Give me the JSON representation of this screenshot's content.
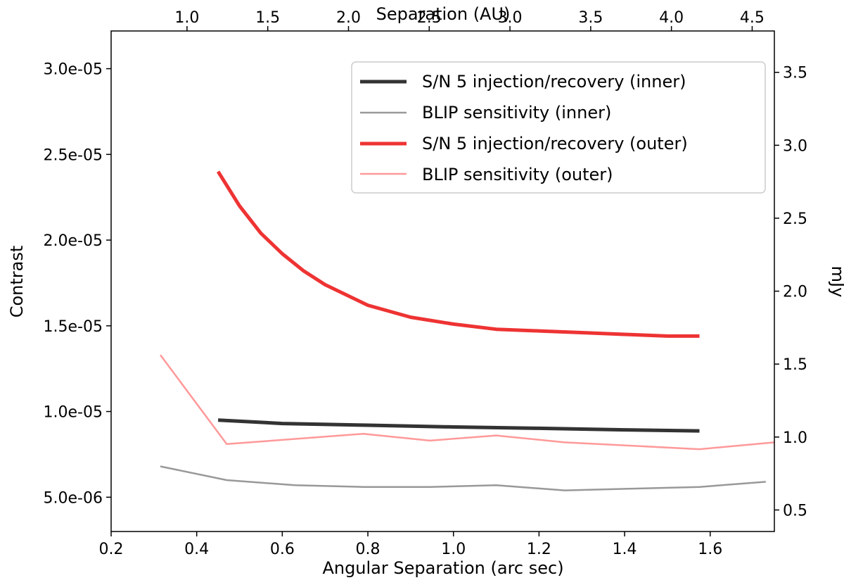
{
  "chart_data": {
    "type": "line",
    "xlabel": "Angular Separation (arc sec)",
    "ylabel": "Contrast",
    "top_xlabel": "Separation (AU)",
    "right_ylabel": "mJy",
    "xlim": [
      0.2,
      1.75
    ],
    "ylim": [
      3e-06,
      3.22e-05
    ],
    "x_ticks": [
      0.2,
      0.4,
      0.6,
      0.8,
      1.0,
      1.2,
      1.4,
      1.6
    ],
    "x_tick_labels": [
      "0.2",
      "0.4",
      "0.6",
      "0.8",
      "1.0",
      "1.2",
      "1.4",
      "1.6"
    ],
    "y_ticks": [
      5e-06,
      1e-05,
      1.5e-05,
      2e-05,
      2.5e-05,
      3e-05
    ],
    "y_tick_labels": [
      "5.0e-06",
      "1.0e-05",
      "1.5e-05",
      "2.0e-05",
      "2.5e-05",
      "3.0e-05"
    ],
    "top_x_ticks": [
      1.0,
      1.5,
      2.0,
      2.5,
      3.0,
      3.5,
      4.0,
      4.5
    ],
    "top_x_tick_labels": [
      "1.0",
      "1.5",
      "2.0",
      "2.5",
      "3.0",
      "3.5",
      "4.0",
      "4.5"
    ],
    "top_x_per_arcsec": 2.65,
    "right_yticks": [
      0.5,
      1.0,
      1.5,
      2.0,
      2.5,
      3.0,
      3.5
    ],
    "right_ytick_labels": [
      "0.5",
      "1.0",
      "1.5",
      "2.0",
      "2.5",
      "3.0",
      "3.5"
    ],
    "right_mjy_per_contrast": 117500,
    "legend_position": "top-right",
    "series": [
      {
        "name": "S/N 5 injection/recovery (inner)",
        "color": "#333333",
        "width": 5,
        "x": [
          0.45,
          0.6,
          0.8,
          1.0,
          1.2,
          1.4,
          1.575
        ],
        "y": [
          9.5e-06,
          9.3e-06,
          9.2e-06,
          9.1e-06,
          9.02e-06,
          8.93e-06,
          8.87e-06
        ]
      },
      {
        "name": "BLIP sensitivity (inner)",
        "color": "#999999",
        "width": 2.5,
        "x": [
          0.315,
          0.47,
          0.63,
          0.79,
          0.945,
          1.1,
          1.26,
          1.42,
          1.575,
          1.73
        ],
        "y": [
          6.8e-06,
          6e-06,
          5.7e-06,
          5.6e-06,
          5.6e-06,
          5.7e-06,
          5.4e-06,
          5.5e-06,
          5.6e-06,
          5.9e-06
        ]
      },
      {
        "name": "S/N 5 injection/recovery (outer)",
        "color": "#ee3333",
        "width": 5,
        "x": [
          0.45,
          0.5,
          0.55,
          0.6,
          0.65,
          0.7,
          0.8,
          0.9,
          1.0,
          1.1,
          1.2,
          1.3,
          1.4,
          1.5,
          1.575
        ],
        "y": [
          2.4e-05,
          2.2e-05,
          2.04e-05,
          1.92e-05,
          1.82e-05,
          1.74e-05,
          1.62e-05,
          1.55e-05,
          1.51e-05,
          1.48e-05,
          1.47e-05,
          1.46e-05,
          1.45e-05,
          1.44e-05,
          1.44e-05
        ]
      },
      {
        "name": "BLIP sensitivity (outer)",
        "color": "#ff9999",
        "width": 2.5,
        "x": [
          0.315,
          0.47,
          0.63,
          0.79,
          0.945,
          1.1,
          1.26,
          1.42,
          1.575,
          1.75
        ],
        "y": [
          1.33e-05,
          8.1e-06,
          8.4e-06,
          8.7e-06,
          8.3e-06,
          8.6e-06,
          8.2e-06,
          8e-06,
          7.8e-06,
          8.2e-06
        ]
      }
    ]
  }
}
